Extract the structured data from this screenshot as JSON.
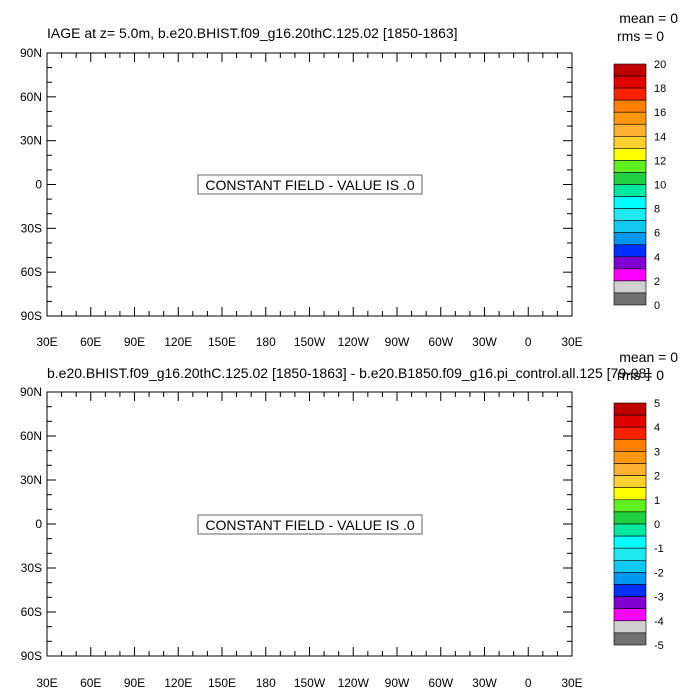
{
  "chart_data": [
    {
      "type": "heatmap",
      "title": "IAGE at z=   5.0m, b.e20.BHIST.f09_g16.20thC.125.02 [1850-1863]",
      "mean_label": "mean = 0",
      "rms_label": "rms = 0",
      "message": "CONSTANT FIELD - VALUE IS .0",
      "x_tick_labels": [
        "30E",
        "60E",
        "90E",
        "120E",
        "150E",
        "180",
        "150W",
        "120W",
        "90W",
        "60W",
        "30W",
        "0",
        "30E"
      ],
      "y_tick_labels": [
        "90N",
        "60N",
        "30N",
        "0",
        "30S",
        "60S",
        "90S"
      ],
      "xlim": [
        30,
        390
      ],
      "ylim": [
        -90,
        90
      ],
      "colorbar": {
        "labels": [
          "20",
          "18",
          "16",
          "14",
          "12",
          "10",
          "8",
          "6",
          "4",
          "2",
          "0"
        ],
        "colors": [
          "#c00000",
          "#e00000",
          "#ff2000",
          "#ff8000",
          "#ff9810",
          "#ffb030",
          "#ffd030",
          "#ffff00",
          "#60f020",
          "#20d040",
          "#00e8a0",
          "#00ffff",
          "#20e8f0",
          "#10c8f0",
          "#0098f0",
          "#0030ff",
          "#8000d0",
          "#ff00ff",
          "#d0d0d0",
          "#707070"
        ]
      }
    },
    {
      "type": "heatmap",
      "title": "b.e20.BHIST.f09_g16.20thC.125.02 [1850-1863] - b.e20.B1850.f09_g16.pi_control.all.125 [79-98]",
      "mean_label": "mean = 0",
      "rms_label": "rms = 0",
      "message": "CONSTANT FIELD - VALUE IS .0",
      "x_tick_labels": [
        "30E",
        "60E",
        "90E",
        "120E",
        "150E",
        "180",
        "150W",
        "120W",
        "90W",
        "60W",
        "30W",
        "0",
        "30E"
      ],
      "y_tick_labels": [
        "90N",
        "60N",
        "30N",
        "0",
        "30S",
        "60S",
        "90S"
      ],
      "xlim": [
        30,
        390
      ],
      "ylim": [
        -90,
        90
      ],
      "colorbar": {
        "labels": [
          "5",
          "4",
          "3",
          "2",
          "1",
          "0",
          "-1",
          "-2",
          "-3",
          "-4",
          "-5"
        ],
        "colors": [
          "#c00000",
          "#e00000",
          "#ff2000",
          "#ff8000",
          "#ff9810",
          "#ffb030",
          "#ffd030",
          "#ffff00",
          "#60f020",
          "#20d040",
          "#00e8a0",
          "#00ffff",
          "#20e8f0",
          "#10c8f0",
          "#0098f0",
          "#0030ff",
          "#8000d0",
          "#ff00ff",
          "#d0d0d0",
          "#707070"
        ]
      }
    }
  ]
}
